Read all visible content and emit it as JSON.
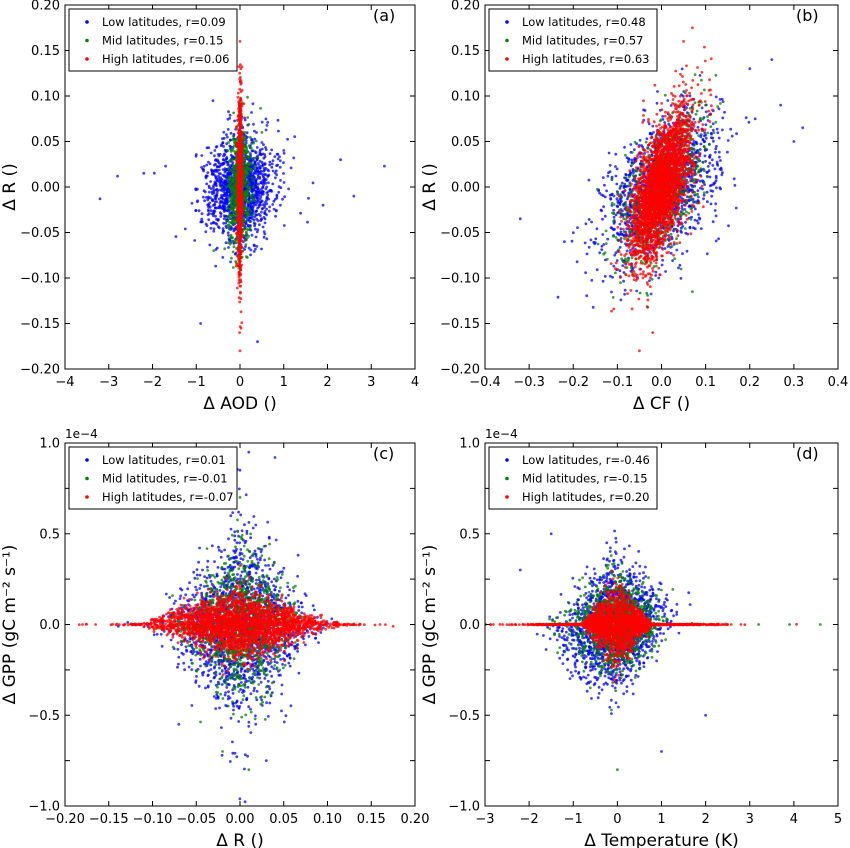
{
  "chart_data": [
    {
      "type": "scatter",
      "panel_label": "(a)",
      "xlabel": "Δ AOD ()",
      "ylabel": "Δ R ()",
      "xlim": [
        -4,
        4
      ],
      "ylim": [
        -0.2,
        0.2
      ],
      "xticks": [
        "−4",
        "−3",
        "−2",
        "−1",
        "0",
        "1",
        "2",
        "3",
        "4"
      ],
      "yticks": [
        "−0.20",
        "−0.15",
        "−0.10",
        "−0.05",
        "0.00",
        "0.05",
        "0.10",
        "0.15",
        "0.20"
      ],
      "legend_position": "top-left",
      "series": [
        {
          "name": "Low latitudes, r=0.09",
          "color": "#0000ff",
          "count": 1400,
          "cx": 0.0,
          "cy": 0.0,
          "sx": 0.35,
          "sy": 0.028,
          "r": 0.09,
          "outliers": [
            [
              -3.2,
              -0.013
            ],
            [
              3.3,
              0.023
            ],
            [
              -2.8,
              0.012
            ],
            [
              2.6,
              -0.01
            ],
            [
              2.3,
              0.03
            ],
            [
              -2.2,
              0.015
            ],
            [
              -1.7,
              0.023
            ],
            [
              1.9,
              -0.02
            ],
            [
              -0.9,
              -0.15
            ],
            [
              0.4,
              -0.17
            ]
          ]
        },
        {
          "name": "Mid latitudes, r=0.15",
          "color": "#008000",
          "count": 700,
          "cx": 0.0,
          "cy": 0.0,
          "sx": 0.13,
          "sy": 0.032,
          "r": 0.15,
          "outliers": [
            [
              -0.6,
              -0.07
            ],
            [
              0.5,
              0.06
            ]
          ]
        },
        {
          "name": "High latitudes, r=0.06",
          "color": "#ff0000",
          "count": 900,
          "cx": 0.0,
          "cy": 0.0,
          "sx": 0.025,
          "sy": 0.045,
          "r": 0.06,
          "outliers": [
            [
              0.0,
              0.16
            ],
            [
              0.0,
              -0.18
            ],
            [
              0.02,
              0.13
            ],
            [
              -0.01,
              -0.16
            ]
          ]
        }
      ]
    },
    {
      "type": "scatter",
      "panel_label": "(b)",
      "xlabel": "Δ CF ()",
      "ylabel": "Δ R ()",
      "xlim": [
        -0.4,
        0.4
      ],
      "ylim": [
        -0.2,
        0.2
      ],
      "xticks": [
        "−0.4",
        "−0.3",
        "−0.2",
        "−0.1",
        "0.0",
        "0.1",
        "0.2",
        "0.3",
        "0.4"
      ],
      "yticks": [
        "−0.20",
        "−0.15",
        "−0.10",
        "−0.05",
        "0.00",
        "0.05",
        "0.10",
        "0.15",
        "0.20"
      ],
      "legend_position": "top-left",
      "series": [
        {
          "name": "Low latitudes, r=0.48",
          "color": "#0000ff",
          "count": 1400,
          "cx": 0.0,
          "cy": 0.0,
          "sx": 0.065,
          "sy": 0.04,
          "r": 0.48,
          "outliers": [
            [
              0.32,
              0.065
            ],
            [
              0.3,
              0.05
            ],
            [
              0.27,
              0.09
            ],
            [
              -0.32,
              -0.035
            ],
            [
              0.2,
              0.13
            ],
            [
              0.25,
              0.14
            ],
            [
              -0.22,
              -0.06
            ]
          ]
        },
        {
          "name": "Mid latitudes, r=0.57",
          "color": "#008000",
          "count": 900,
          "cx": 0.0,
          "cy": 0.0,
          "sx": 0.045,
          "sy": 0.04,
          "r": 0.57,
          "outliers": [
            [
              0.07,
              -0.115
            ],
            [
              0.1,
              0.09
            ]
          ]
        },
        {
          "name": "High latitudes, r=0.63",
          "color": "#ff0000",
          "count": 2600,
          "cx": 0.0,
          "cy": 0.0,
          "sx": 0.035,
          "sy": 0.042,
          "r": 0.63,
          "outliers": [
            [
              0.07,
              0.175
            ],
            [
              -0.05,
              -0.18
            ],
            [
              -0.02,
              -0.16
            ],
            [
              0.05,
              0.16
            ]
          ]
        }
      ]
    },
    {
      "type": "scatter",
      "panel_label": "(c)",
      "xlabel": "Δ R ()",
      "ylabel": "Δ GPP (gC m⁻² s⁻¹)",
      "multiplier": "1e−4",
      "xlim": [
        -0.2,
        0.2
      ],
      "ylim": [
        -1.0,
        1.0
      ],
      "xticks": [
        "−0.20",
        "−0.15",
        "−0.10",
        "−0.05",
        "0.00",
        "0.05",
        "0.10",
        "0.15",
        "0.20"
      ],
      "yticks": [
        "−1.0",
        "",
        "−0.5",
        "",
        "0.0",
        "",
        "0.5",
        "",
        "1.0"
      ],
      "legend_position": "top-left",
      "series": [
        {
          "name": "Low latitudes, r=0.01",
          "color": "#0000ff",
          "count": 1600,
          "cx": 0.0,
          "cy": 0.0,
          "sx": 0.035,
          "sy": 0.2,
          "r": 0.01,
          "shape": "diamond",
          "outliers": [
            [
              0.01,
              0.95
            ],
            [
              0.04,
              0.92
            ],
            [
              0.0,
              0.85
            ],
            [
              -0.07,
              -0.55
            ],
            [
              0.03,
              -0.75
            ]
          ]
        },
        {
          "name": "Mid latitudes, r=-0.01",
          "color": "#008000",
          "count": 1100,
          "cx": 0.0,
          "cy": 0.0,
          "sx": 0.03,
          "sy": 0.16,
          "r": -0.01,
          "shape": "diamond",
          "outliers": [
            [
              0.01,
              -0.8
            ],
            [
              0.0,
              0.7
            ],
            [
              -0.02,
              -0.7
            ]
          ]
        },
        {
          "name": "High latitudes, r=-0.07",
          "color": "#ff0000",
          "count": 2400,
          "cx": 0.0,
          "cy": 0.0,
          "sx": 0.045,
          "sy": 0.06,
          "r": -0.07,
          "shape": "bowtie",
          "outliers": [
            [
              0.175,
              -0.01
            ],
            [
              -0.18,
              0.0
            ],
            [
              0.16,
              0.0
            ],
            [
              -0.165,
              0.0
            ]
          ]
        }
      ]
    },
    {
      "type": "scatter",
      "panel_label": "(d)",
      "xlabel": "Δ Temperature (K)",
      "ylabel": "Δ GPP (gC m⁻² s⁻¹)",
      "multiplier": "1e−4",
      "xlim": [
        -3,
        5
      ],
      "ylim": [
        -1.0,
        1.0
      ],
      "xticks": [
        "−3",
        "−2",
        "−1",
        "0",
        "1",
        "2",
        "3",
        "4",
        "5"
      ],
      "yticks": [
        "−1.0",
        "",
        "−0.5",
        "",
        "0.0",
        "",
        "0.5",
        "",
        "1.0"
      ],
      "legend_position": "top-left",
      "series": [
        {
          "name": "Low latitudes, r=-0.46",
          "color": "#0000ff",
          "count": 1600,
          "cx": 0.0,
          "cy": 0.0,
          "sx": 0.6,
          "sy": 0.2,
          "r": -0.46,
          "shape": "wedge",
          "outliers": [
            [
              2.0,
              -0.5
            ],
            [
              -1.5,
              0.5
            ],
            [
              1.0,
              -0.7
            ],
            [
              -2.2,
              0.3
            ]
          ]
        },
        {
          "name": "Mid latitudes, r=-0.15",
          "color": "#008000",
          "count": 1100,
          "cx": 0.0,
          "cy": 0.0,
          "sx": 0.5,
          "sy": 0.16,
          "r": -0.15,
          "shape": "wedge",
          "outliers": [
            [
              3.9,
              0.0
            ],
            [
              4.6,
              0.0
            ],
            [
              3.2,
              0.0
            ],
            [
              0.0,
              -0.8
            ],
            [
              -0.5,
              0.65
            ]
          ]
        },
        {
          "name": "High latitudes, r=0.20",
          "color": "#ff0000",
          "count": 2400,
          "cx": 0.0,
          "cy": 0.0,
          "sx": 0.6,
          "sy": 0.05,
          "r": 0.2,
          "shape": "line",
          "outliers": [
            [
              -2.4,
              0.0
            ],
            [
              2.8,
              0.0
            ],
            [
              -2.6,
              0.0
            ],
            [
              2.5,
              0.0
            ]
          ]
        }
      ]
    }
  ]
}
